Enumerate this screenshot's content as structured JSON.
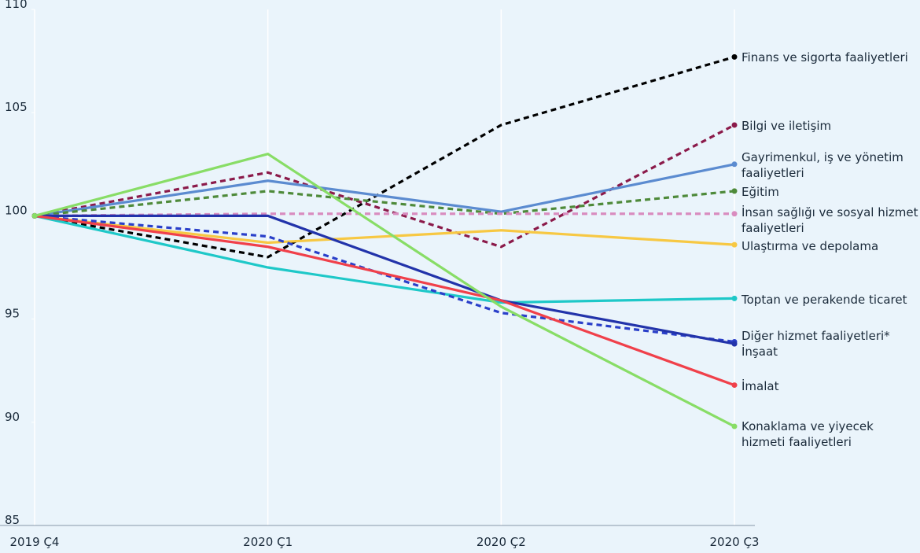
{
  "chart_data": {
    "type": "line",
    "categories": [
      "2019 Ç4",
      "2020 Ç1",
      "2020 Ç2",
      "2020 Ç3"
    ],
    "ylim": [
      85,
      110
    ],
    "yticks": [
      85,
      90,
      95,
      100,
      105,
      110
    ],
    "grid": true,
    "series": [
      {
        "name": "Finans ve sigorta faaliyetleri",
        "color": "#000000",
        "style": "dashed",
        "values": [
          100,
          98.0,
          104.4,
          107.7
        ]
      },
      {
        "name": "Bilgi ve iletişim",
        "color": "#8b1a4a",
        "style": "dashed",
        "values": [
          100,
          102.1,
          98.5,
          104.4
        ]
      },
      {
        "name": "Gayrimenkul, iş ve yönetim faaliyetleri",
        "color": "#5b8bd0",
        "style": "solid",
        "values": [
          100,
          101.7,
          100.2,
          102.5
        ]
      },
      {
        "name": "Eğitim",
        "color": "#4e8a3a",
        "style": "dashed",
        "values": [
          100,
          101.2,
          100.1,
          101.2
        ]
      },
      {
        "name": "İnsan sağlığı ve sosyal hizmet faaliyetleri",
        "color": "#d98cbf",
        "style": "dashed",
        "values": [
          100,
          100.1,
          100.1,
          100.1
        ]
      },
      {
        "name": "Ulaştırma ve depolama",
        "color": "#f7c843",
        "style": "solid",
        "values": [
          100,
          98.7,
          99.3,
          98.6
        ]
      },
      {
        "name": "Toptan ve perakende ticaret",
        "color": "#1ec8c8",
        "style": "solid",
        "values": [
          100,
          97.5,
          95.8,
          96.0
        ]
      },
      {
        "name": "Diğer hizmet faaliyetleri*",
        "color": "#2a3fc9",
        "style": "dashed",
        "values": [
          100,
          99.0,
          95.3,
          93.9
        ]
      },
      {
        "name": "İnşaat",
        "color": "#2233aa",
        "style": "solid",
        "values": [
          100,
          100,
          95.9,
          93.8
        ]
      },
      {
        "name": "İmalat",
        "color": "#f0404a",
        "style": "solid",
        "values": [
          100,
          98.5,
          95.9,
          91.8
        ]
      },
      {
        "name": "Konaklama ve yiyecek hizmeti faaliyetleri",
        "color": "#88dd66",
        "style": "solid",
        "values": [
          100,
          103.0,
          95.6,
          89.8
        ]
      }
    ]
  }
}
